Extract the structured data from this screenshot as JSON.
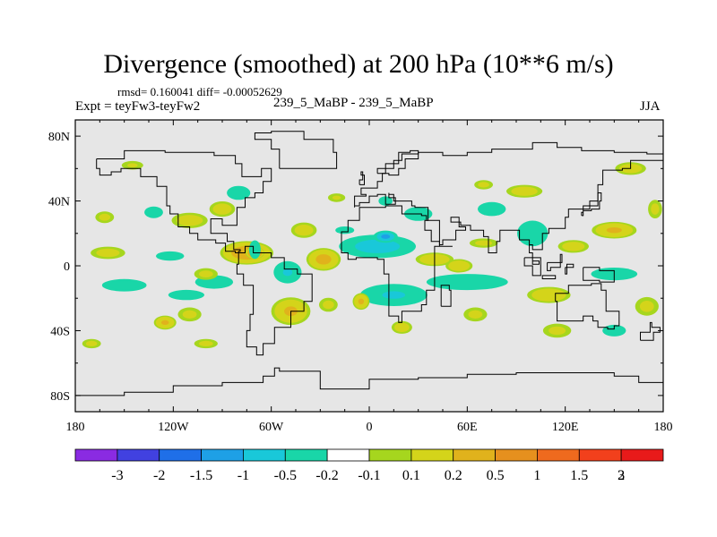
{
  "header": {
    "title": "Divergence (smoothed) at 200 hPa (10**6 m/s)",
    "stats": "rmsd= 0.160041 diff= -0.00052629",
    "experiment": "Expt = teyFw3-teyFw2",
    "center_label": "239_5_MaBP - 239_5_MaBP",
    "season": "JJA"
  },
  "colors": {
    "background": "#e6e6e6",
    "coast": "#000000",
    "palette": [
      "#8a2be2",
      "#4141e0",
      "#1f6fe8",
      "#1ea0e6",
      "#19c8d9",
      "#19d6a8",
      "#ffffff",
      "#a6d61e",
      "#d4d41a",
      "#e0b21c",
      "#e6901e",
      "#ef6a1e",
      "#f2401c",
      "#e81a1a"
    ]
  },
  "chart_data": {
    "type": "heatmap",
    "title": "Divergence (smoothed) at 200 hPa (10**6 m/s)",
    "subtitle": "239_5_MaBP - 239_5_MaBP",
    "x_range": [
      -180,
      180
    ],
    "y_range": [
      -90,
      90
    ],
    "x_ticks": [
      {
        "value": -180,
        "label": "180"
      },
      {
        "value": -120,
        "label": "120W"
      },
      {
        "value": -60,
        "label": "60W"
      },
      {
        "value": 0,
        "label": "0"
      },
      {
        "value": 60,
        "label": "60E"
      },
      {
        "value": 120,
        "label": "120E"
      },
      {
        "value": 180,
        "label": "180"
      }
    ],
    "y_ticks": [
      {
        "value": 80,
        "label": "80N"
      },
      {
        "value": 40,
        "label": "40N"
      },
      {
        "value": 0,
        "label": "0"
      },
      {
        "value": -40,
        "label": "40S"
      },
      {
        "value": -80,
        "label": "80S"
      }
    ],
    "levels": [
      "-3",
      "-2",
      "-1.5",
      "-1",
      "-0.5",
      "-0.2",
      "-0.1",
      "0.1",
      "0.2",
      "0.5",
      "1",
      "1.5",
      "2",
      "3"
    ],
    "blobs": [
      {
        "lon": -160,
        "lat": 8,
        "rlon": 14,
        "rlat": 5,
        "v": 0.35
      },
      {
        "lon": -150,
        "lat": -12,
        "rlon": 18,
        "rlat": 5,
        "v": -0.35
      },
      {
        "lon": -162,
        "lat": 30,
        "rlon": 8,
        "rlat": 5,
        "v": 0.3
      },
      {
        "lon": -145,
        "lat": 62,
        "rlon": 10,
        "rlat": 4,
        "v": 0.25
      },
      {
        "lon": -132,
        "lat": 33,
        "rlon": 8,
        "rlat": 5,
        "v": -0.3
      },
      {
        "lon": -110,
        "lat": 28,
        "rlon": 14,
        "rlat": 6,
        "v": 0.4
      },
      {
        "lon": -122,
        "lat": 6,
        "rlon": 12,
        "rlat": 4,
        "v": -0.3
      },
      {
        "lon": -110,
        "lat": -30,
        "rlon": 10,
        "rlat": 6,
        "v": 0.3
      },
      {
        "lon": -125,
        "lat": -35,
        "rlon": 8,
        "rlat": 5,
        "v": 0.6
      },
      {
        "lon": -112,
        "lat": -18,
        "rlon": 14,
        "rlat": 4,
        "v": -0.4
      },
      {
        "lon": -75,
        "lat": 8,
        "rlon": 18,
        "rlat": 8,
        "v": 0.9
      },
      {
        "lon": -70,
        "lat": 8,
        "rlon": 6,
        "rlat": 4,
        "v": 1.6
      },
      {
        "lon": -90,
        "lat": 35,
        "rlon": 10,
        "rlat": 6,
        "v": 0.4
      },
      {
        "lon": -80,
        "lat": 45,
        "rlon": 10,
        "rlat": 6,
        "v": -0.3
      },
      {
        "lon": -70,
        "lat": 10,
        "rlon": 5,
        "rlat": 8,
        "v": -0.3
      },
      {
        "lon": -95,
        "lat": -10,
        "rlon": 14,
        "rlat": 5,
        "v": -0.5
      },
      {
        "lon": -100,
        "lat": -5,
        "rlon": 10,
        "rlat": 5,
        "v": 0.3
      },
      {
        "lon": -48,
        "lat": -28,
        "rlon": 14,
        "rlat": 10,
        "v": 0.6
      },
      {
        "lon": -50,
        "lat": -4,
        "rlon": 10,
        "rlat": 8,
        "v": -0.6
      },
      {
        "lon": -40,
        "lat": 22,
        "rlon": 10,
        "rlat": 6,
        "v": 0.4
      },
      {
        "lon": -28,
        "lat": 4,
        "rlon": 12,
        "rlat": 8,
        "v": 0.7
      },
      {
        "lon": -15,
        "lat": 22,
        "rlon": 10,
        "rlat": 4,
        "v": -0.2
      },
      {
        "lon": -25,
        "lat": -24,
        "rlon": 8,
        "rlat": 6,
        "v": 0.3
      },
      {
        "lon": 5,
        "lat": 12,
        "rlon": 26,
        "rlat": 8,
        "v": -0.9
      },
      {
        "lon": 10,
        "lat": 18,
        "rlon": 8,
        "rlat": 4,
        "v": -1.3
      },
      {
        "lon": 30,
        "lat": 32,
        "rlon": 12,
        "rlat": 6,
        "v": -0.3
      },
      {
        "lon": 10,
        "lat": 40,
        "rlon": 6,
        "rlat": 4,
        "v": -0.3
      },
      {
        "lon": 15,
        "lat": -18,
        "rlon": 24,
        "rlat": 8,
        "v": -0.6
      },
      {
        "lon": -5,
        "lat": -22,
        "rlon": 6,
        "rlat": 6,
        "v": 0.6
      },
      {
        "lon": 20,
        "lat": -38,
        "rlon": 8,
        "rlat": 5,
        "v": 0.4
      },
      {
        "lon": 40,
        "lat": 4,
        "rlon": 14,
        "rlat": 5,
        "v": 0.5
      },
      {
        "lon": 55,
        "lat": 0,
        "rlon": 10,
        "rlat": 5,
        "v": 0.5
      },
      {
        "lon": 70,
        "lat": 14,
        "rlon": 12,
        "rlat": 4,
        "v": 0.3
      },
      {
        "lon": 60,
        "lat": -10,
        "rlon": 30,
        "rlat": 6,
        "v": -0.5
      },
      {
        "lon": 75,
        "lat": 35,
        "rlon": 12,
        "rlat": 6,
        "v": -0.3
      },
      {
        "lon": 70,
        "lat": 50,
        "rlon": 8,
        "rlat": 4,
        "v": 0.3
      },
      {
        "lon": 65,
        "lat": -30,
        "rlon": 10,
        "rlat": 6,
        "v": 0.3
      },
      {
        "lon": 95,
        "lat": 46,
        "rlon": 14,
        "rlat": 5,
        "v": 0.4
      },
      {
        "lon": 100,
        "lat": 20,
        "rlon": 12,
        "rlat": 10,
        "v": -0.4
      },
      {
        "lon": 110,
        "lat": -18,
        "rlon": 16,
        "rlat": 6,
        "v": 0.5
      },
      {
        "lon": 125,
        "lat": 12,
        "rlon": 12,
        "rlat": 5,
        "v": 0.4
      },
      {
        "lon": 115,
        "lat": -40,
        "rlon": 12,
        "rlat": 6,
        "v": 0.3
      },
      {
        "lon": 150,
        "lat": 22,
        "rlon": 16,
        "rlat": 6,
        "v": 0.6
      },
      {
        "lon": 160,
        "lat": 60,
        "rlon": 12,
        "rlat": 5,
        "v": 0.4
      },
      {
        "lon": 150,
        "lat": -5,
        "rlon": 18,
        "rlat": 5,
        "v": -0.4
      },
      {
        "lon": 170,
        "lat": -25,
        "rlon": 10,
        "rlat": 8,
        "v": 0.3
      },
      {
        "lon": 150,
        "lat": -40,
        "rlon": 10,
        "rlat": 5,
        "v": -0.3
      },
      {
        "lon": 175,
        "lat": 35,
        "rlon": 6,
        "rlat": 8,
        "v": 0.3
      },
      {
        "lon": -170,
        "lat": -48,
        "rlon": 8,
        "rlat": 4,
        "v": 0.3
      },
      {
        "lon": -100,
        "lat": -48,
        "rlon": 10,
        "rlat": 4,
        "v": 0.3
      },
      {
        "lon": -20,
        "lat": 42,
        "rlon": 8,
        "rlat": 4,
        "v": 0.25
      }
    ],
    "coastlines": [
      [
        [
          -167,
          66
        ],
        [
          -150,
          71
        ],
        [
          -125,
          70
        ],
        [
          -95,
          68
        ],
        [
          -82,
          63
        ],
        [
          -78,
          55
        ],
        [
          -66,
          60
        ],
        [
          -60,
          52
        ],
        [
          -65,
          45
        ],
        [
          -70,
          42
        ],
        [
          -76,
          36
        ],
        [
          -81,
          30
        ],
        [
          -81,
          25
        ],
        [
          -90,
          29
        ],
        [
          -97,
          27
        ],
        [
          -97,
          20
        ],
        [
          -90,
          20
        ],
        [
          -87,
          15
        ],
        [
          -83,
          10
        ],
        [
          -79,
          9
        ],
        [
          -80,
          1
        ],
        [
          -81,
          -5
        ],
        [
          -77,
          -12
        ],
        [
          -71,
          -18
        ],
        [
          -71,
          -30
        ],
        [
          -73,
          -40
        ],
        [
          -75,
          -50
        ],
        [
          -69,
          -55
        ],
        [
          -66,
          -55
        ],
        [
          -65,
          -48
        ],
        [
          -58,
          -38
        ],
        [
          -48,
          -28
        ],
        [
          -40,
          -22
        ],
        [
          -35,
          -9
        ],
        [
          -35,
          -5
        ],
        [
          -44,
          -2
        ],
        [
          -52,
          5
        ],
        [
          -60,
          8
        ],
        [
          -71,
          12
        ],
        [
          -76,
          8
        ],
        [
          -82,
          9
        ],
        [
          -88,
          14
        ],
        [
          -94,
          16
        ],
        [
          -105,
          20
        ],
        [
          -110,
          24
        ],
        [
          -117,
          32
        ],
        [
          -122,
          37
        ],
        [
          -124,
          45
        ],
        [
          -124,
          49
        ],
        [
          -130,
          55
        ],
        [
          -140,
          60
        ],
        [
          -152,
          58
        ],
        [
          -158,
          56
        ],
        [
          -165,
          60
        ],
        [
          -167,
          66
        ]
      ],
      [
        [
          -55,
          60
        ],
        [
          -45,
          60
        ],
        [
          -20,
          70
        ],
        [
          -22,
          78
        ],
        [
          -40,
          83
        ],
        [
          -60,
          82
        ],
        [
          -70,
          78
        ],
        [
          -60,
          72
        ],
        [
          -55,
          60
        ]
      ],
      [
        [
          -17,
          15
        ],
        [
          -17,
          21
        ],
        [
          -13,
          28
        ],
        [
          -6,
          36
        ],
        [
          10,
          37
        ],
        [
          20,
          32
        ],
        [
          32,
          31
        ],
        [
          35,
          28
        ],
        [
          43,
          12
        ],
        [
          51,
          12
        ],
        [
          40,
          -5
        ],
        [
          40,
          -15
        ],
        [
          35,
          -24
        ],
        [
          32,
          -28
        ],
        [
          20,
          -35
        ],
        [
          18,
          -31
        ],
        [
          12,
          -18
        ],
        [
          12,
          -5
        ],
        [
          9,
          4
        ],
        [
          5,
          5
        ],
        [
          -8,
          4
        ],
        [
          -13,
          8
        ],
        [
          -17,
          15
        ]
      ],
      [
        [
          -9,
          36
        ],
        [
          -9,
          43
        ],
        [
          -2,
          44
        ],
        [
          -5,
          48
        ],
        [
          5,
          52
        ],
        [
          8,
          57
        ],
        [
          12,
          56
        ],
        [
          18,
          60
        ],
        [
          22,
          66
        ],
        [
          30,
          70
        ],
        [
          45,
          68
        ],
        [
          60,
          70
        ],
        [
          75,
          72
        ],
        [
          100,
          76
        ],
        [
          115,
          73
        ],
        [
          130,
          71
        ],
        [
          150,
          70
        ],
        [
          170,
          69
        ],
        [
          180,
          68
        ],
        [
          180,
          65
        ],
        [
          160,
          60
        ],
        [
          155,
          59
        ],
        [
          143,
          50
        ],
        [
          140,
          40
        ],
        [
          135,
          35
        ],
        [
          122,
          30
        ],
        [
          120,
          23
        ],
        [
          110,
          20
        ],
        [
          106,
          10
        ],
        [
          100,
          13
        ],
        [
          98,
          8
        ],
        [
          100,
          3
        ],
        [
          104,
          1
        ],
        [
          100,
          8
        ],
        [
          98,
          16
        ],
        [
          92,
          22
        ],
        [
          88,
          22
        ],
        [
          80,
          15
        ],
        [
          78,
          8
        ],
        [
          73,
          18
        ],
        [
          70,
          22
        ],
        [
          62,
          25
        ],
        [
          56,
          27
        ],
        [
          50,
          30
        ],
        [
          55,
          24
        ],
        [
          59,
          22
        ],
        [
          53,
          16
        ],
        [
          45,
          13
        ],
        [
          43,
          15
        ],
        [
          38,
          22
        ],
        [
          34,
          28
        ],
        [
          36,
          36
        ],
        [
          28,
          37
        ],
        [
          26,
          40
        ],
        [
          22,
          40
        ],
        [
          20,
          40
        ],
        [
          15,
          44
        ],
        [
          12,
          45
        ],
        [
          12,
          42
        ],
        [
          16,
          38
        ],
        [
          10,
          44
        ],
        [
          5,
          43
        ],
        [
          3,
          43
        ],
        [
          0,
          39
        ],
        [
          -6,
          37
        ],
        [
          -9,
          36
        ]
      ],
      [
        [
          -6,
          50
        ],
        [
          -3,
          51
        ],
        [
          -3,
          56
        ],
        [
          -5,
          58
        ],
        [
          -4,
          53
        ],
        [
          -6,
          50
        ]
      ],
      [
        [
          5,
          57
        ],
        [
          10,
          63
        ],
        [
          18,
          70
        ],
        [
          25,
          71
        ],
        [
          30,
          69
        ],
        [
          20,
          65
        ],
        [
          15,
          60
        ],
        [
          5,
          57
        ]
      ],
      [
        [
          44,
          -25
        ],
        [
          47,
          -25
        ],
        [
          50,
          -15
        ],
        [
          49,
          -12
        ],
        [
          44,
          -17
        ],
        [
          44,
          -25
        ]
      ],
      [
        [
          95,
          5
        ],
        [
          105,
          -6
        ],
        [
          100,
          0
        ],
        [
          95,
          5
        ]
      ],
      [
        [
          108,
          -6
        ],
        [
          114,
          -8
        ],
        [
          106,
          -6
        ],
        [
          108,
          -6
        ]
      ],
      [
        [
          109,
          2
        ],
        [
          118,
          7
        ],
        [
          117,
          -1
        ],
        [
          111,
          -3
        ],
        [
          109,
          2
        ]
      ],
      [
        [
          120,
          -1
        ],
        [
          125,
          1
        ],
        [
          121,
          -5
        ],
        [
          120,
          -1
        ]
      ],
      [
        [
          131,
          -1
        ],
        [
          141,
          -3
        ],
        [
          150,
          -10
        ],
        [
          141,
          -9
        ],
        [
          131,
          -1
        ]
      ],
      [
        [
          130,
          31
        ],
        [
          131,
          34
        ],
        [
          136,
          35
        ],
        [
          141,
          40
        ],
        [
          142,
          45
        ],
        [
          140,
          37
        ],
        [
          131,
          33
        ],
        [
          130,
          31
        ]
      ],
      [
        [
          114,
          -22
        ],
        [
          115,
          -34
        ],
        [
          122,
          -34
        ],
        [
          131,
          -31
        ],
        [
          137,
          -34
        ],
        [
          140,
          -38
        ],
        [
          146,
          -39
        ],
        [
          150,
          -37
        ],
        [
          153,
          -28
        ],
        [
          145,
          -15
        ],
        [
          142,
          -11
        ],
        [
          136,
          -12
        ],
        [
          130,
          -12
        ],
        [
          122,
          -17
        ],
        [
          114,
          -22
        ]
      ],
      [
        [
          166,
          -46
        ],
        [
          174,
          -41
        ],
        [
          178,
          -38
        ],
        [
          173,
          -35
        ],
        [
          172,
          -41
        ],
        [
          166,
          -46
        ]
      ]
    ],
    "antarctic_coast": [
      [
        -180,
        -80
      ],
      [
        -150,
        -78
      ],
      [
        -120,
        -74
      ],
      [
        -90,
        -72
      ],
      [
        -65,
        -68
      ],
      [
        -58,
        -63
      ],
      [
        -55,
        -65
      ],
      [
        -30,
        -76
      ],
      [
        0,
        -70
      ],
      [
        30,
        -69
      ],
      [
        60,
        -67
      ],
      [
        90,
        -66
      ],
      [
        120,
        -66
      ],
      [
        150,
        -68
      ],
      [
        165,
        -72
      ],
      [
        180,
        -78
      ]
    ]
  }
}
